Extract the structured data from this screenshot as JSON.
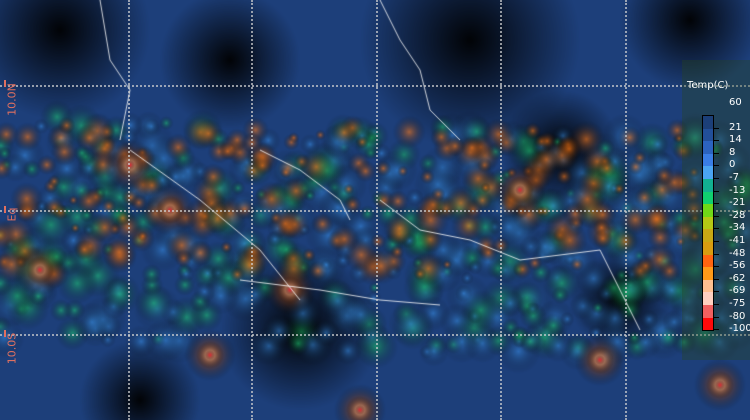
{
  "map": {
    "latitude_labels": [
      "10.0N",
      "Eq",
      "10.0S"
    ],
    "legend": {
      "title": "Temp(C)",
      "top_label": "60",
      "entries": [
        {
          "label": "21",
          "color": "#1c3f78"
        },
        {
          "label": "14",
          "color": "#224f99"
        },
        {
          "label": "8",
          "color": "#2c63bf"
        },
        {
          "label": "0",
          "color": "#3a7de6"
        },
        {
          "label": "-7",
          "color": "#4aa4f2"
        },
        {
          "label": "-13",
          "color": "#12b092"
        },
        {
          "label": "-21",
          "color": "#10d070"
        },
        {
          "label": "-28",
          "color": "#70d818"
        },
        {
          "label": "-34",
          "color": "#b4c814"
        },
        {
          "label": "-41",
          "color": "#c8a814"
        },
        {
          "label": "-48",
          "color": "#d89c10"
        },
        {
          "label": "-56",
          "color": "#ff6410"
        },
        {
          "label": "-62",
          "color": "#ff9a18"
        },
        {
          "label": "-69",
          "color": "#ffbf90"
        },
        {
          "label": "-75",
          "color": "#ffd0c0"
        },
        {
          "label": "-80",
          "color": "#f06060"
        },
        {
          "label": "-100",
          "color": "#ff0a0a"
        }
      ]
    }
  }
}
